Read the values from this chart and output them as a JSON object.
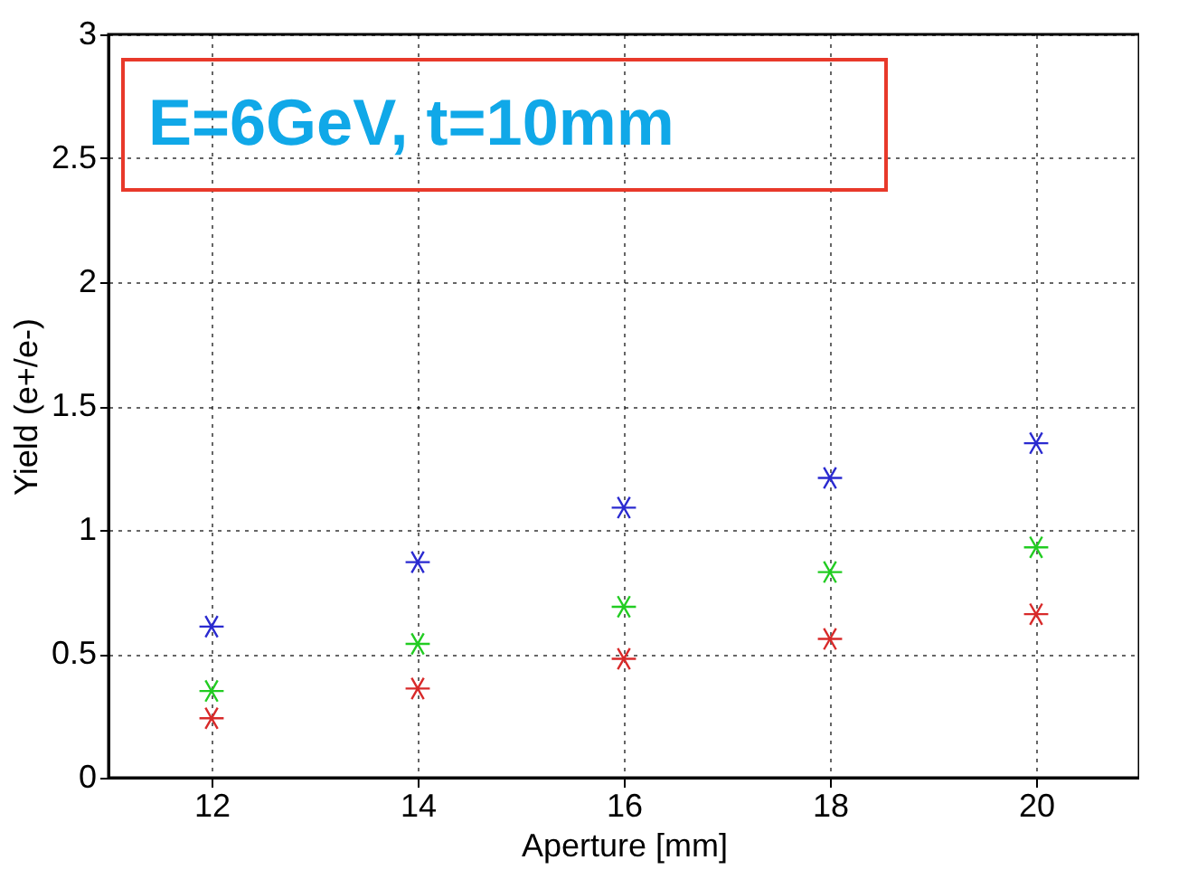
{
  "chart_data": {
    "type": "scatter",
    "xlabel": "Aperture [mm]",
    "ylabel": "Yield (e+/e-)",
    "x": [
      12,
      14,
      16,
      18,
      20
    ],
    "series": [
      {
        "color": "#2a2ad0",
        "values": [
          0.61,
          0.87,
          1.09,
          1.21,
          1.35
        ]
      },
      {
        "color": "#22cc22",
        "values": [
          0.35,
          0.54,
          0.69,
          0.83,
          0.93
        ]
      },
      {
        "color": "#d82a2a",
        "values": [
          0.24,
          0.36,
          0.48,
          0.56,
          0.66
        ]
      }
    ],
    "annotations": [
      "E=6GeV, t=10mm"
    ],
    "xlim": [
      11,
      21
    ],
    "xticks": [
      12,
      14,
      16,
      18,
      20
    ],
    "ylim": [
      0,
      3
    ],
    "yticks": [
      0,
      0.5,
      1,
      1.5,
      2,
      2.5,
      3
    ],
    "grid": true,
    "marker": "cross"
  }
}
